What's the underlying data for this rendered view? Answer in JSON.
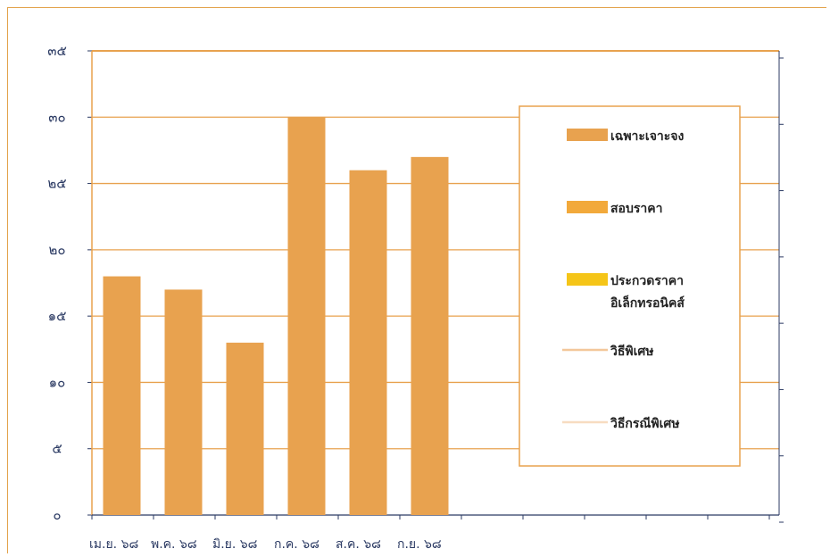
{
  "chart_data": {
    "type": "bar",
    "title": "",
    "xlabel": "",
    "ylabel": "",
    "ylim": [
      0,
      35
    ],
    "ytick_labels": [
      "๐",
      "๕",
      "๑๐",
      "๑๕",
      "๒๐",
      "๒๕",
      "๓๐",
      "๓๕"
    ],
    "categories": [
      "เม.ย. ๖๘",
      "พ.ค. ๖๘",
      "มิ.ย. ๖๘",
      "ก.ค. ๖๘",
      "ส.ค. ๖๘",
      "ก.ย. ๖๘"
    ],
    "series": [
      {
        "name": "เฉพาะเจาะจง",
        "color": "#e8a24f",
        "values": [
          18,
          17,
          13,
          30,
          26,
          27
        ]
      },
      {
        "name": "สอบราคา",
        "color": "#f2a93b",
        "values": [
          0,
          0,
          0,
          0,
          0,
          0
        ]
      },
      {
        "name": "ประกวดราคาอิเล็กทรอนิคส์",
        "color": "#f5c518",
        "values": [
          0,
          0,
          0,
          0,
          0,
          0
        ]
      },
      {
        "name": "วิธีพิเศษ",
        "color": "#f3c79a",
        "values": [
          0,
          0,
          0,
          0,
          0,
          0
        ]
      },
      {
        "name": "วิธีกรณีพิเศษ",
        "color": "#f7dcc0",
        "values": [
          0,
          0,
          0,
          0,
          0,
          0
        ]
      }
    ],
    "legend": {
      "position": "right",
      "entries": [
        {
          "lines": [
            "เฉพาะเจาะจง"
          ],
          "marker": "box",
          "color": "#e8a24f"
        },
        {
          "lines": [
            "สอบราคา"
          ],
          "marker": "box",
          "color": "#f2a93b"
        },
        {
          "lines": [
            "ประกวดราคา",
            "อิเล็กทรอนิคส์"
          ],
          "marker": "box",
          "color": "#f5c518"
        },
        {
          "lines": [
            "วิธีพิเศษ"
          ],
          "marker": "line",
          "color": "#f3c79a"
        },
        {
          "lines": [
            "วิธีกรณีพิเศษ"
          ],
          "marker": "line",
          "color": "#f7dcc0"
        }
      ]
    },
    "grid": true,
    "colors": {
      "grid": "#e8a24f",
      "axis": "#2b3a63",
      "bar": "#e8a24f"
    }
  }
}
